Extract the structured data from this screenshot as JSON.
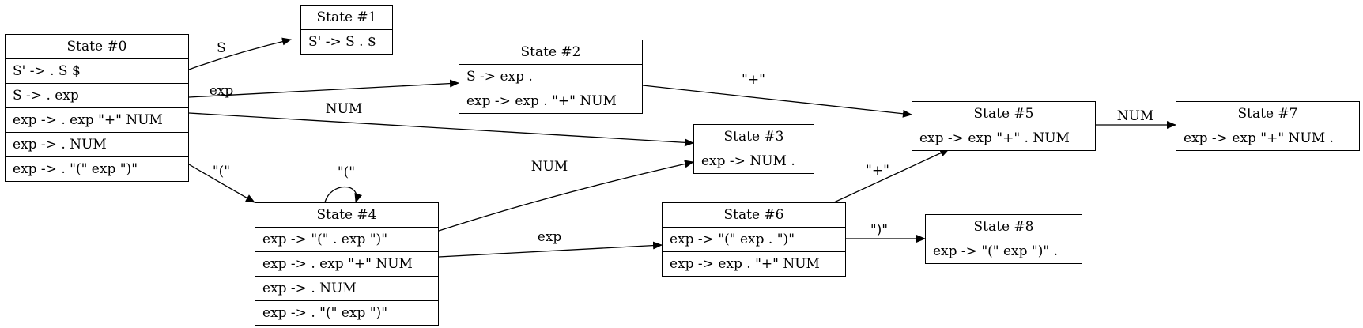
{
  "states": [
    {
      "id": "s0",
      "title": "State #0",
      "items": [
        "S' -> . S $",
        "S -> . exp",
        "exp -> . exp \"+\" NUM",
        "exp -> . NUM",
        "exp -> . \"(\" exp \")\""
      ]
    },
    {
      "id": "s1",
      "title": "State #1",
      "items": [
        "S' -> S . $"
      ]
    },
    {
      "id": "s2",
      "title": "State #2",
      "items": [
        "S -> exp .",
        "exp -> exp . \"+\" NUM"
      ]
    },
    {
      "id": "s3",
      "title": "State #3",
      "items": [
        "exp -> NUM ."
      ]
    },
    {
      "id": "s4",
      "title": "State #4",
      "items": [
        "exp -> \"(\" . exp \")\"",
        "exp -> . exp \"+\" NUM",
        "exp -> . NUM",
        "exp -> . \"(\" exp \")\""
      ]
    },
    {
      "id": "s5",
      "title": "State #5",
      "items": [
        "exp -> exp \"+\" . NUM"
      ]
    },
    {
      "id": "s6",
      "title": "State #6",
      "items": [
        "exp -> \"(\" exp . \")\"",
        "exp -> exp . \"+\" NUM"
      ]
    },
    {
      "id": "s7",
      "title": "State #7",
      "items": [
        "exp -> exp \"+\" NUM ."
      ]
    },
    {
      "id": "s8",
      "title": "State #8",
      "items": [
        "exp -> \"(\" exp \")\" ."
      ]
    }
  ],
  "edges": [
    {
      "from": "s0",
      "to": "s1",
      "label": "S"
    },
    {
      "from": "s0",
      "to": "s2",
      "label": "exp"
    },
    {
      "from": "s0",
      "to": "s3",
      "label": "NUM"
    },
    {
      "from": "s0",
      "to": "s4",
      "label": "\"(\""
    },
    {
      "from": "s4",
      "to": "s4",
      "label": "\"(\""
    },
    {
      "from": "s4",
      "to": "s3",
      "label": "NUM"
    },
    {
      "from": "s4",
      "to": "s6",
      "label": "exp"
    },
    {
      "from": "s2",
      "to": "s5",
      "label": "\"+\""
    },
    {
      "from": "s6",
      "to": "s5",
      "label": "\"+\""
    },
    {
      "from": "s6",
      "to": "s8",
      "label": "\")\""
    },
    {
      "from": "s5",
      "to": "s7",
      "label": "NUM"
    }
  ]
}
